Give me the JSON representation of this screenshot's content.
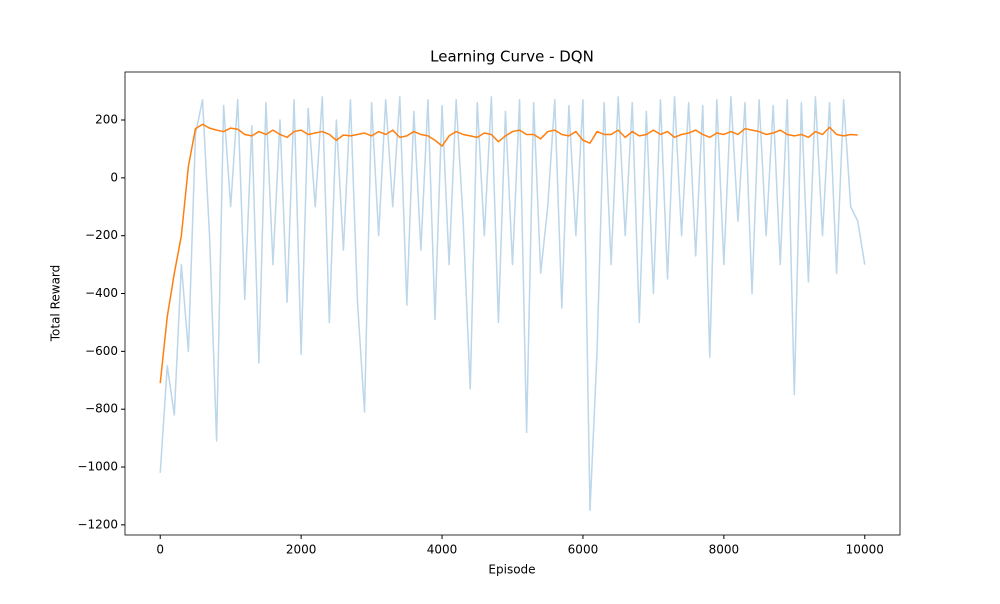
{
  "chart_data": {
    "type": "line",
    "title": "Learning Curve - DQN",
    "x_label": "Episode",
    "y_label": "Total Reward",
    "x": [
      0,
      100,
      200,
      300,
      400,
      500,
      600,
      700,
      800,
      900,
      1000,
      1100,
      1200,
      1300,
      1400,
      1500,
      1600,
      1700,
      1800,
      1900,
      2000,
      2100,
      2200,
      2300,
      2400,
      2500,
      2600,
      2700,
      2800,
      2900,
      3000,
      3100,
      3200,
      3300,
      3400,
      3500,
      3600,
      3700,
      3800,
      3900,
      4000,
      4100,
      4200,
      4300,
      4400,
      4500,
      4600,
      4700,
      4800,
      4900,
      5000,
      5100,
      5200,
      5300,
      5400,
      5500,
      5600,
      5700,
      5800,
      5900,
      6000,
      6100,
      6200,
      6300,
      6400,
      6500,
      6600,
      6700,
      6800,
      6900,
      7000,
      7100,
      7200,
      7300,
      7400,
      7500,
      7600,
      7700,
      7800,
      7900,
      8000,
      8100,
      8200,
      8300,
      8400,
      8500,
      8600,
      8700,
      8800,
      8900,
      9000,
      9100,
      9200,
      9300,
      9400,
      9500,
      9600,
      9700,
      9800,
      9900,
      10000
    ],
    "series": [
      {
        "color": "#bcd6ea",
        "values": [
          -1020,
          -650,
          -820,
          -300,
          -600,
          150,
          270,
          -200,
          -910,
          250,
          -100,
          270,
          -420,
          180,
          -640,
          260,
          -300,
          200,
          -430,
          270,
          -610,
          240,
          -100,
          280,
          -500,
          200,
          -250,
          270,
          -430,
          -810,
          260,
          -200,
          270,
          -100,
          280,
          -440,
          230,
          -250,
          270,
          -490,
          250,
          -300,
          270,
          -150,
          -730,
          260,
          -200,
          280,
          -500,
          230,
          -300,
          270,
          -880,
          260,
          -330,
          -100,
          270,
          -450,
          250,
          -200,
          270,
          -1150,
          -600,
          260,
          -300,
          280,
          -200,
          260,
          -500,
          230,
          -400,
          270,
          -350,
          280,
          -200,
          260,
          -270,
          250,
          -620,
          270,
          -300,
          280,
          -150,
          260,
          -400,
          270,
          -200,
          250,
          -300,
          270,
          -750,
          260,
          -360,
          280,
          -200,
          260,
          -330,
          270,
          -100,
          -150,
          -300
        ]
      },
      {
        "color": "#ff7f0e",
        "values": [
          -710,
          -480,
          -330,
          -200,
          40,
          170,
          185,
          172,
          165,
          160,
          172,
          168,
          150,
          145,
          160,
          150,
          165,
          150,
          140,
          160,
          165,
          150,
          155,
          160,
          150,
          130,
          148,
          145,
          150,
          155,
          145,
          160,
          150,
          165,
          140,
          145,
          160,
          150,
          145,
          130,
          110,
          145,
          160,
          150,
          145,
          140,
          155,
          150,
          125,
          145,
          160,
          165,
          150,
          150,
          135,
          160,
          165,
          150,
          145,
          160,
          130,
          120,
          160,
          150,
          150,
          165,
          140,
          160,
          145,
          150,
          165,
          150,
          160,
          140,
          150,
          155,
          165,
          150,
          140,
          155,
          150,
          160,
          150,
          170,
          165,
          160,
          150,
          155,
          165,
          150,
          145,
          150,
          140,
          160,
          150,
          175,
          150,
          145,
          150,
          148,
          null
        ]
      }
    ],
    "xlim": [
      -500,
      10500
    ],
    "xticks": [
      0,
      2000,
      4000,
      6000,
      8000,
      10000
    ],
    "ylim": [
      -1235,
      366
    ],
    "yticks": [
      {
        "value": -1200,
        "label": "−1200"
      },
      {
        "value": -1000,
        "label": "−1000"
      },
      {
        "value": -800,
        "label": "−800"
      },
      {
        "value": -600,
        "label": "−600"
      },
      {
        "value": -400,
        "label": "−400"
      },
      {
        "value": -200,
        "label": "−200"
      },
      0,
      200
    ]
  }
}
